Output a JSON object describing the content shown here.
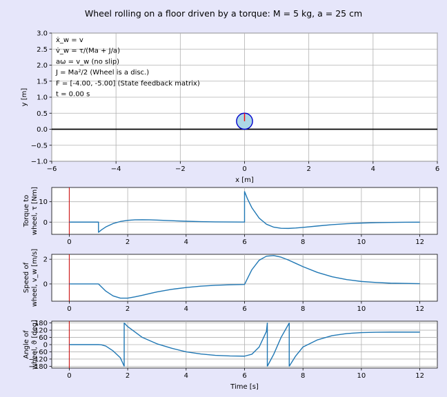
{
  "figure": {
    "background": "#e6e6fa",
    "title": "Wheel rolling on a floor driven by a torque: M = 5 kg, a = 25 cm"
  },
  "scene": {
    "xlabel": "x [m]",
    "ylabel": "y [m]",
    "xlim": [
      -6,
      6
    ],
    "ylim": [
      -1,
      3
    ],
    "xticks": [
      -6,
      -4,
      -2,
      0,
      2,
      4,
      6
    ],
    "yticks": [
      -1.0,
      -0.5,
      0.0,
      0.5,
      1.0,
      1.5,
      2.0,
      2.5,
      3.0
    ],
    "grid": true,
    "floor_y": 0,
    "wheel": {
      "x": 0,
      "y": 0.25,
      "radius": 0.25,
      "fill": "#add8e6",
      "edge": "#0000cd",
      "spoke_color": "#ff0000",
      "angle_deg": 0
    },
    "annotations": [
      "ẋ_w = v",
      "v̇_w = τ/(Ma + J/a)",
      "aω = v_w (no slip)",
      "J = Ma²/2 (Wheel is a disc.)",
      "F = [-4.00, -5.00] (State feedback matrix)",
      "t = 0.00 s"
    ]
  },
  "chart_data": [
    {
      "type": "line",
      "name": "torque",
      "ylabel_lines": [
        "Torque to",
        "wheel, τ [Nm]"
      ],
      "xlabel": "",
      "xlim": [
        -0.6,
        12.6
      ],
      "ylim": [
        -6,
        17
      ],
      "xticks": [
        0,
        2,
        4,
        6,
        8,
        10,
        12
      ],
      "yticks": [
        0,
        10
      ],
      "grid": true,
      "cursor_t": 0,
      "series": [
        {
          "x": [
            0,
            1.0,
            1.0,
            1.1,
            1.25,
            1.5,
            1.75,
            2.0,
            2.25,
            2.5,
            2.75,
            3.0,
            3.5,
            4.0,
            4.5,
            5.0,
            5.5,
            6.0,
            6.0,
            6.1,
            6.25,
            6.5,
            6.75,
            7.0,
            7.25,
            7.5,
            7.75,
            8.0,
            8.5,
            9.0,
            9.5,
            10.0,
            10.5,
            11.0,
            11.5,
            12.0
          ],
          "y": [
            0,
            0,
            -5.0,
            -3.82,
            -2.38,
            -0.71,
            0.3,
            0.86,
            1.12,
            1.18,
            1.12,
            1.0,
            0.7,
            0.43,
            0.23,
            0.11,
            0.05,
            0.02,
            15.0,
            11.44,
            7.07,
            1.98,
            -1.03,
            -2.48,
            -3.03,
            -3.08,
            -2.89,
            -2.59,
            -1.9,
            -1.26,
            -0.78,
            -0.46,
            -0.26,
            -0.14,
            -0.07,
            -0.04
          ]
        }
      ]
    },
    {
      "type": "line",
      "name": "speed",
      "ylabel_lines": [
        "Speed of",
        "wheel, v_w [m/s]"
      ],
      "xlabel": "",
      "xlim": [
        -0.6,
        12.6
      ],
      "ylim": [
        -1.4,
        2.4
      ],
      "xticks": [
        0,
        2,
        4,
        6,
        8,
        10,
        12
      ],
      "yticks": [
        0,
        2
      ],
      "grid": true,
      "cursor_t": 0,
      "series": [
        {
          "x": [
            0,
            1.0,
            1.25,
            1.5,
            1.75,
            2.0,
            2.25,
            2.5,
            2.75,
            3.0,
            3.5,
            4.0,
            4.5,
            5.0,
            5.5,
            6.0,
            6.25,
            6.5,
            6.75,
            7.0,
            7.25,
            7.5,
            7.75,
            8.0,
            8.5,
            9.0,
            9.5,
            10.0,
            10.5,
            11.0,
            11.5,
            12.0
          ],
          "y": [
            0,
            0,
            -0.58,
            -0.97,
            -1.15,
            -1.15,
            -1.05,
            -0.92,
            -0.78,
            -0.65,
            -0.44,
            -0.29,
            -0.18,
            -0.11,
            -0.07,
            -0.04,
            1.15,
            1.92,
            2.25,
            2.3,
            2.17,
            1.94,
            1.67,
            1.4,
            0.93,
            0.58,
            0.35,
            0.2,
            0.12,
            0.06,
            0.04,
            0.02
          ]
        }
      ]
    },
    {
      "type": "line",
      "name": "angle",
      "ylabel_lines": [
        "Angle of",
        "wheel, ϑ [deg]"
      ],
      "xlabel": "Time [s]",
      "xlim": [
        -0.6,
        12.6
      ],
      "ylim": [
        -195,
        195
      ],
      "xticks": [
        0,
        2,
        4,
        6,
        8,
        10,
        12
      ],
      "yticks": [
        180,
        120,
        60,
        0,
        -60,
        -120,
        -180
      ],
      "grid": true,
      "cursor_t": 0,
      "series": [
        {
          "x": [
            0,
            1.0,
            1.1,
            1.25,
            1.5,
            1.75,
            1.88,
            1.88,
            2.0,
            2.5,
            3.0,
            3.5,
            4.0,
            4.5,
            5.0,
            5.5,
            6.0,
            6.25,
            6.5,
            6.75,
            6.78,
            6.78,
            7.0,
            7.25,
            7.53,
            7.53,
            7.75,
            8.0,
            8.5,
            9.0,
            9.5,
            10.0,
            10.5,
            11.0,
            11.5,
            12.0
          ],
          "y": [
            0,
            0,
            -2,
            -12,
            -52,
            -110,
            -180,
            180,
            150,
            60,
            7,
            -30,
            -60,
            -78,
            -89,
            -94,
            -96,
            -80,
            -20,
            110,
            180,
            -180,
            -80,
            60,
            180,
            -180,
            -95,
            -20,
            40,
            75,
            92,
            100,
            103,
            104,
            104,
            104
          ]
        }
      ]
    }
  ]
}
